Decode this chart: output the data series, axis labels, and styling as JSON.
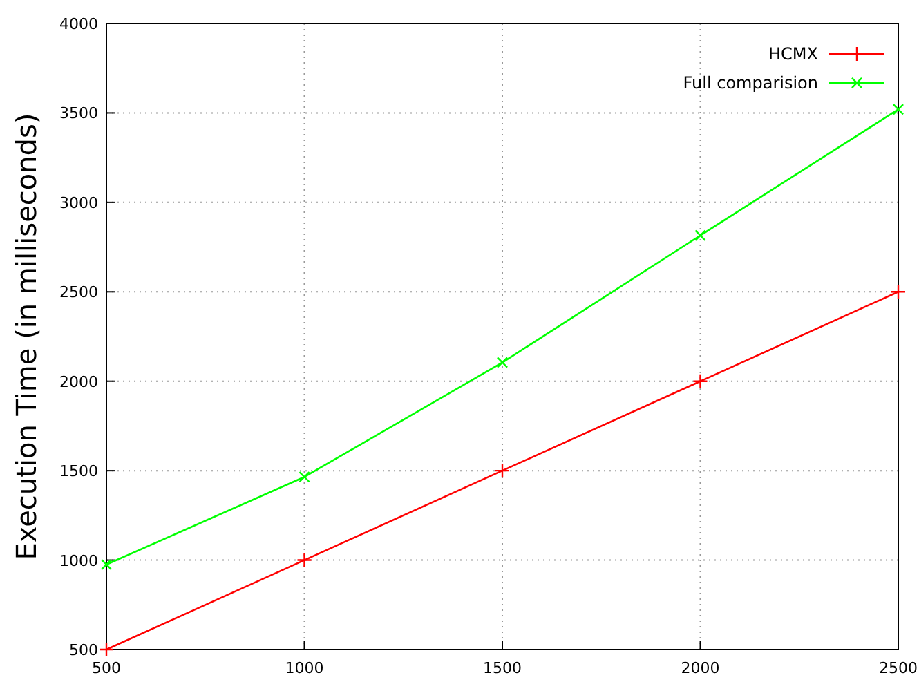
{
  "chart_data": {
    "type": "line",
    "ylabel": "Execution Time (in milliseconds)",
    "x": [
      500,
      1000,
      1500,
      2000,
      2500
    ],
    "series": [
      {
        "name": "HCMX",
        "color": "#ff0000",
        "values": [
          500,
          1000,
          1500,
          2000,
          2500
        ],
        "marker": "cross"
      },
      {
        "name": "Full comparision",
        "color": "#00ff00",
        "values": [
          975,
          1465,
          2105,
          2815,
          3520
        ],
        "marker": "cross"
      }
    ],
    "xlim": [
      500,
      2500
    ],
    "xticks": [
      500,
      1000,
      1500,
      2000,
      2500
    ],
    "ylim": [
      500,
      4000
    ],
    "yticks": [
      500,
      1000,
      1500,
      2000,
      2500,
      3000,
      3500,
      4000
    ],
    "grid": true,
    "legend": "top right",
    "line_style": "solid"
  }
}
